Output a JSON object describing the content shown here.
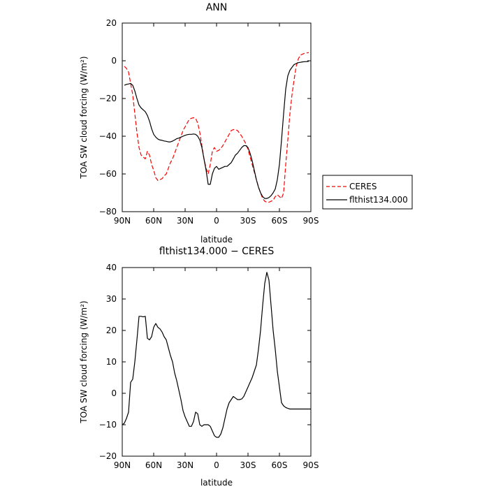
{
  "chart_data": [
    {
      "type": "line",
      "title": "ANN",
      "xlabel": "latitude",
      "ylabel": "TOA SW cloud forcing (W/m²)",
      "xlim": [
        90,
        -90
      ],
      "ylim": [
        -80,
        20
      ],
      "xticks": [
        90,
        60,
        30,
        0,
        -30,
        -60,
        -90
      ],
      "xtick_labels": [
        "90N",
        "60N",
        "30N",
        "0",
        "30S",
        "60S",
        "90S"
      ],
      "yticks": [
        20,
        0,
        -20,
        -40,
        -60,
        -80
      ],
      "ytick_labels": [
        "20",
        "0",
        "−20",
        "−40",
        "−60",
        "−80"
      ],
      "legend_position": "right",
      "grid": false,
      "series": [
        {
          "name": "CERES",
          "color": "#ff0000",
          "dash": "dashed",
          "x": [
            88,
            86,
            84,
            82,
            80,
            78,
            76,
            74,
            72,
            70,
            68,
            66,
            64,
            62,
            60,
            58,
            56,
            54,
            52,
            50,
            48,
            46,
            44,
            42,
            40,
            38,
            36,
            34,
            32,
            30,
            28,
            26,
            24,
            22,
            20,
            18,
            16,
            14,
            12,
            10,
            8,
            6,
            4,
            2,
            0,
            -2,
            -4,
            -6,
            -8,
            -10,
            -12,
            -14,
            -16,
            -18,
            -20,
            -22,
            -24,
            -26,
            -28,
            -30,
            -32,
            -34,
            -36,
            -38,
            -40,
            -42,
            -44,
            -46,
            -48,
            -50,
            -52,
            -54,
            -56,
            -58,
            -60,
            -62,
            -64,
            -66,
            -68,
            -70,
            -72,
            -74,
            -76,
            -78,
            -80,
            -82,
            -84,
            -86,
            -88
          ],
          "y": [
            -3,
            -4,
            -6,
            -12,
            -18,
            -28,
            -38,
            -46,
            -50,
            -51,
            -52,
            -48,
            -50,
            -55,
            -58,
            -62,
            -63.5,
            -63,
            -62.5,
            -61,
            -60,
            -57,
            -54,
            -52,
            -49,
            -46,
            -43,
            -40,
            -37,
            -35,
            -33,
            -31,
            -30.5,
            -30.2,
            -30.5,
            -33,
            -38,
            -45,
            -52,
            -57,
            -60,
            -55,
            -48,
            -46,
            -48,
            -47.5,
            -46.5,
            -45,
            -43,
            -41,
            -39,
            -37,
            -36.5,
            -36.5,
            -37,
            -38.5,
            -40,
            -42,
            -44,
            -47,
            -51,
            -55,
            -59,
            -63,
            -67,
            -70,
            -73,
            -74.5,
            -75,
            -75,
            -74.5,
            -74,
            -72,
            -71,
            -72,
            -73,
            -70,
            -55,
            -42,
            -28,
            -18,
            -10,
            -3,
            1,
            3,
            3.5,
            4,
            4.2,
            4.3
          ]
        },
        {
          "name": "flthist134.000",
          "color": "#000000",
          "dash": "solid",
          "x": [
            88,
            86,
            84,
            82,
            80,
            78,
            76,
            74,
            72,
            70,
            68,
            66,
            64,
            62,
            60,
            58,
            56,
            54,
            52,
            50,
            48,
            46,
            44,
            42,
            40,
            38,
            36,
            34,
            32,
            30,
            28,
            26,
            24,
            22,
            20,
            18,
            16,
            14,
            12,
            10,
            8,
            6,
            4,
            2,
            0,
            -2,
            -4,
            -6,
            -8,
            -10,
            -12,
            -14,
            -16,
            -18,
            -20,
            -22,
            -24,
            -26,
            -28,
            -30,
            -32,
            -34,
            -36,
            -38,
            -40,
            -42,
            -44,
            -46,
            -48,
            -50,
            -52,
            -54,
            -56,
            -58,
            -60,
            -62,
            -64,
            -66,
            -68,
            -70,
            -72,
            -74,
            -76,
            -78,
            -80,
            -82,
            -84,
            -86,
            -88
          ],
          "y": [
            -13,
            -12.5,
            -12.3,
            -12,
            -13,
            -16,
            -20,
            -23.5,
            -25,
            -26,
            -27,
            -29,
            -32,
            -36,
            -39,
            -40.5,
            -41.5,
            -42,
            -42.2,
            -42.5,
            -42.7,
            -43,
            -43,
            -42.6,
            -42,
            -41.3,
            -41,
            -40.5,
            -40,
            -39.5,
            -39.2,
            -39,
            -39,
            -38.8,
            -39,
            -40,
            -42,
            -46,
            -52,
            -58,
            -65.5,
            -65.5,
            -60,
            -57,
            -56,
            -57.5,
            -57,
            -56.5,
            -56,
            -56,
            -55,
            -54,
            -52,
            -50,
            -49,
            -47.5,
            -46,
            -45,
            -45,
            -46,
            -49,
            -53,
            -58,
            -63,
            -67,
            -70,
            -72,
            -73,
            -73,
            -72.5,
            -71.5,
            -70,
            -68,
            -63,
            -55,
            -42,
            -28,
            -15,
            -8,
            -5,
            -3.5,
            -2,
            -1.5,
            -1,
            -0.8,
            -0.6,
            -0.5,
            -0.4,
            -0.3
          ]
        }
      ]
    },
    {
      "type": "line",
      "title": "flthist134.000 − CERES",
      "xlabel": "latitude",
      "ylabel": "TOA SW cloud forcing (W/m²)",
      "xlim": [
        90,
        -90
      ],
      "ylim": [
        -20,
        40
      ],
      "xticks": [
        90,
        60,
        30,
        0,
        -30,
        -60,
        -90
      ],
      "xtick_labels": [
        "90N",
        "60N",
        "30N",
        "0",
        "30S",
        "60S",
        "90S"
      ],
      "yticks": [
        40,
        30,
        20,
        10,
        0,
        -10,
        -20
      ],
      "ytick_labels": [
        "40",
        "30",
        "20",
        "10",
        "0",
        "−10",
        "−20"
      ],
      "grid": false,
      "series": [
        {
          "color": "#000000",
          "dash": "solid",
          "x": [
            90,
            88,
            86,
            84,
            82,
            80,
            78,
            76,
            74,
            72,
            70,
            68,
            66,
            64,
            62,
            60,
            58,
            56,
            54,
            52,
            50,
            48,
            46,
            44,
            42,
            40,
            38,
            36,
            34,
            32,
            30,
            28,
            26,
            24,
            22,
            20,
            18,
            16,
            14,
            12,
            10,
            8,
            6,
            4,
            2,
            0,
            -2,
            -4,
            -6,
            -8,
            -10,
            -12,
            -14,
            -16,
            -18,
            -20,
            -22,
            -24,
            -26,
            -28,
            -30,
            -32,
            -34,
            -36,
            -38,
            -40,
            -42,
            -44,
            -46,
            -48,
            -50,
            -52,
            -54,
            -56,
            -58,
            -60,
            -62,
            -64,
            -66,
            -68,
            -70,
            -72,
            -74,
            -76,
            -78,
            -80,
            -82,
            -84,
            -86,
            -88,
            -90
          ],
          "y": [
            -10,
            -9.5,
            -8,
            -6,
            3.5,
            4.5,
            10,
            17,
            24.5,
            24.5,
            24.3,
            24.5,
            17.5,
            17,
            18,
            21,
            22.2,
            21,
            20.5,
            19.5,
            18,
            17,
            14.5,
            12,
            10,
            6.5,
            4,
            1,
            -2,
            -5.5,
            -7.5,
            -9,
            -10.5,
            -10.5,
            -9,
            -6,
            -6.5,
            -10,
            -10.5,
            -10,
            -10,
            -10,
            -10.5,
            -12,
            -13.5,
            -14,
            -14,
            -13,
            -11,
            -8,
            -5,
            -3,
            -2,
            -1,
            -1.5,
            -2,
            -2,
            -1.8,
            -1,
            0.5,
            2,
            3.5,
            5,
            7,
            9,
            14,
            20,
            28,
            35,
            38.5,
            36,
            28,
            20,
            14,
            7,
            2,
            -3,
            -4,
            -4.5,
            -4.8,
            -5,
            -5,
            -5,
            -5,
            -5,
            -5,
            -5,
            -5,
            -5,
            -5,
            -5
          ]
        }
      ]
    }
  ]
}
